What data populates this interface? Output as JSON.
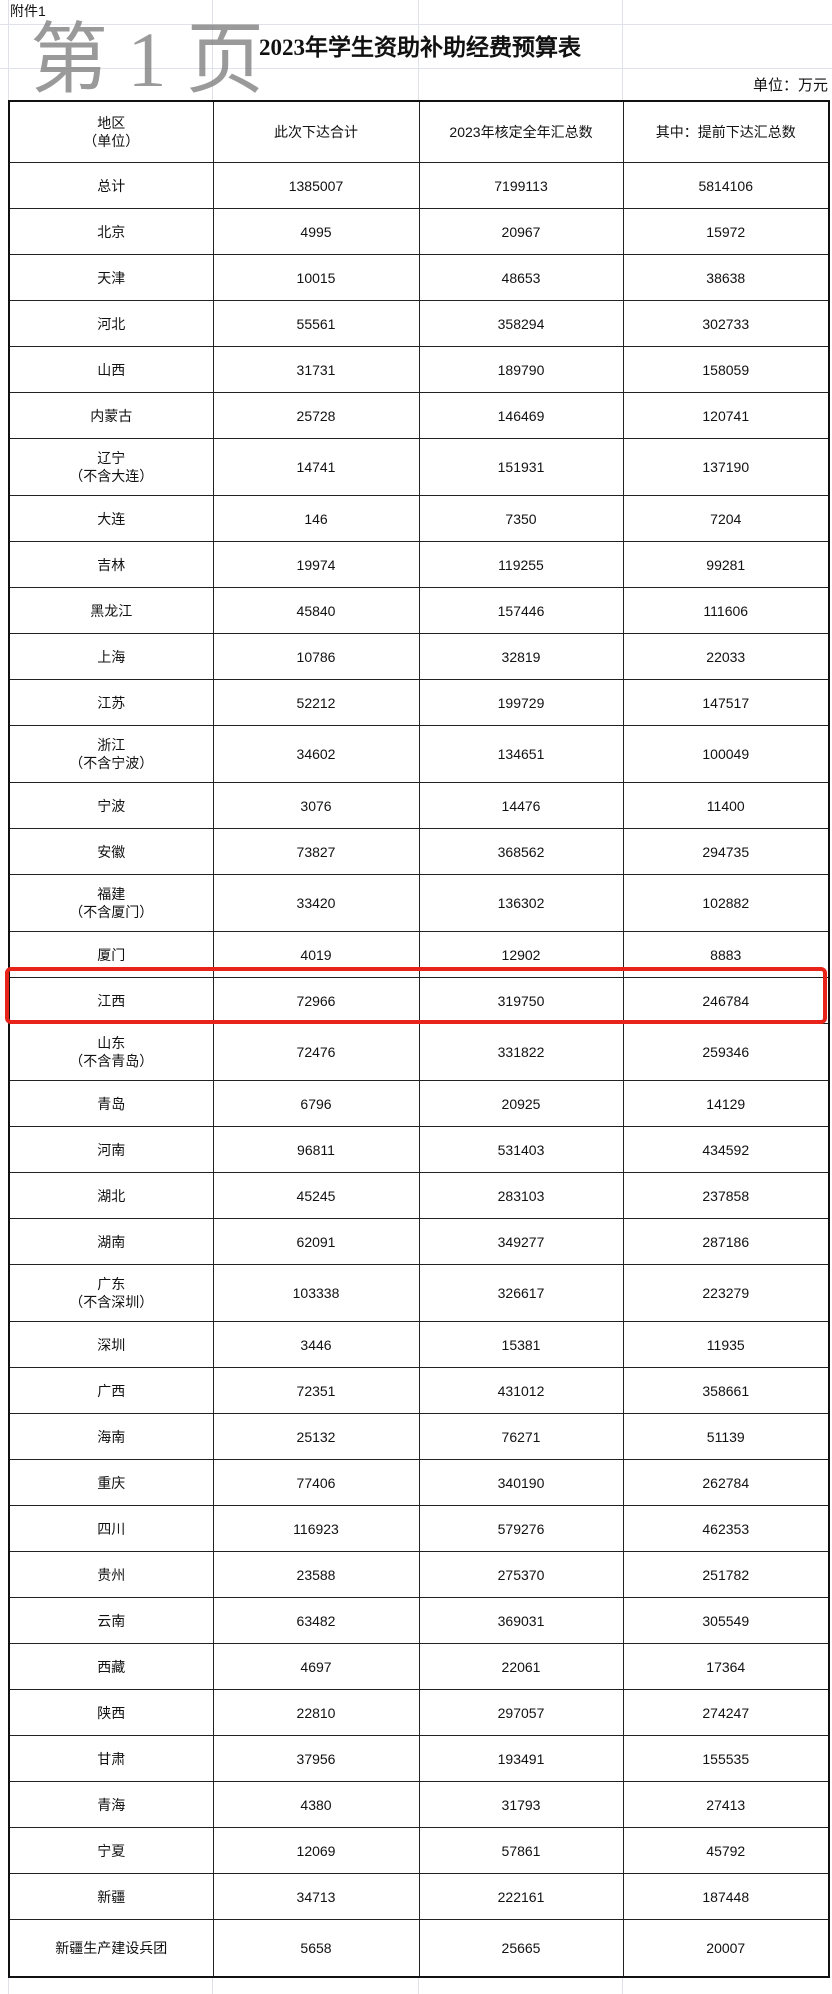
{
  "attachment_label": "附件1",
  "title": "2023年学生资助补助经费预算表",
  "unit": "单位：万元",
  "headers": {
    "region": "地区",
    "region_note": "（单位）",
    "col1": "此次下达合计",
    "col2": "2023年核定全年汇总数",
    "col3": "其中：提前下达汇总数"
  },
  "rows": [
    {
      "region": "总计",
      "v1": "1385007",
      "v2": "7199113",
      "v3": "5814106"
    },
    {
      "region": "北京",
      "v1": "4995",
      "v2": "20967",
      "v3": "15972"
    },
    {
      "region": "天津",
      "v1": "10015",
      "v2": "48653",
      "v3": "38638"
    },
    {
      "region": "河北",
      "v1": "55561",
      "v2": "358294",
      "v3": "302733"
    },
    {
      "region": "山西",
      "v1": "31731",
      "v2": "189790",
      "v3": "158059"
    },
    {
      "region": "内蒙古",
      "v1": "25728",
      "v2": "146469",
      "v3": "120741"
    },
    {
      "region": "辽宁",
      "note": "（不含大连）",
      "v1": "14741",
      "v2": "151931",
      "v3": "137190"
    },
    {
      "region": "大连",
      "v1": "146",
      "v2": "7350",
      "v3": "7204"
    },
    {
      "region": "吉林",
      "v1": "19974",
      "v2": "119255",
      "v3": "99281"
    },
    {
      "region": "黑龙江",
      "v1": "45840",
      "v2": "157446",
      "v3": "111606"
    },
    {
      "region": "上海",
      "v1": "10786",
      "v2": "32819",
      "v3": "22033"
    },
    {
      "region": "江苏",
      "v1": "52212",
      "v2": "199729",
      "v3": "147517"
    },
    {
      "region": "浙江",
      "note": "（不含宁波）",
      "v1": "34602",
      "v2": "134651",
      "v3": "100049"
    },
    {
      "region": "宁波",
      "v1": "3076",
      "v2": "14476",
      "v3": "11400"
    },
    {
      "region": "安徽",
      "v1": "73827",
      "v2": "368562",
      "v3": "294735"
    },
    {
      "region": "福建",
      "note": "（不含厦门）",
      "v1": "33420",
      "v2": "136302",
      "v3": "102882"
    },
    {
      "region": "厦门",
      "v1": "4019",
      "v2": "12902",
      "v3": "8883"
    },
    {
      "region": "江西",
      "v1": "72966",
      "v2": "319750",
      "v3": "246784",
      "highlighted": true
    },
    {
      "region": "山东",
      "note": "（不含青岛）",
      "v1": "72476",
      "v2": "331822",
      "v3": "259346"
    },
    {
      "region": "青岛",
      "v1": "6796",
      "v2": "20925",
      "v3": "14129"
    },
    {
      "region": "河南",
      "v1": "96811",
      "v2": "531403",
      "v3": "434592"
    },
    {
      "region": "湖北",
      "v1": "45245",
      "v2": "283103",
      "v3": "237858"
    },
    {
      "region": "湖南",
      "v1": "62091",
      "v2": "349277",
      "v3": "287186"
    },
    {
      "region": "广东",
      "note": "（不含深圳）",
      "v1": "103338",
      "v2": "326617",
      "v3": "223279"
    },
    {
      "region": "深圳",
      "v1": "3446",
      "v2": "15381",
      "v3": "11935"
    },
    {
      "region": "广西",
      "v1": "72351",
      "v2": "431012",
      "v3": "358661"
    },
    {
      "region": "海南",
      "v1": "25132",
      "v2": "76271",
      "v3": "51139"
    },
    {
      "region": "重庆",
      "v1": "77406",
      "v2": "340190",
      "v3": "262784"
    },
    {
      "region": "四川",
      "v1": "116923",
      "v2": "579276",
      "v3": "462353"
    },
    {
      "region": "贵州",
      "v1": "23588",
      "v2": "275370",
      "v3": "251782"
    },
    {
      "region": "云南",
      "v1": "63482",
      "v2": "369031",
      "v3": "305549"
    },
    {
      "region": "西藏",
      "v1": "4697",
      "v2": "22061",
      "v3": "17364"
    },
    {
      "region": "陕西",
      "v1": "22810",
      "v2": "297057",
      "v3": "274247"
    },
    {
      "region": "甘肃",
      "v1": "37956",
      "v2": "193491",
      "v3": "155535"
    },
    {
      "region": "青海",
      "v1": "4380",
      "v2": "31793",
      "v3": "27413"
    },
    {
      "region": "宁夏",
      "v1": "12069",
      "v2": "57861",
      "v3": "45792"
    },
    {
      "region": "新疆",
      "v1": "34713",
      "v2": "222161",
      "v3": "187448"
    },
    {
      "region": "新疆生产建设兵团",
      "v1": "5658",
      "v2": "25665",
      "v3": "20007",
      "tall": true
    }
  ],
  "watermark": "第 1 页",
  "colors": {
    "highlight_border": "#e8231a",
    "gridline": "#dfe2e8",
    "watermark": "#787878"
  }
}
